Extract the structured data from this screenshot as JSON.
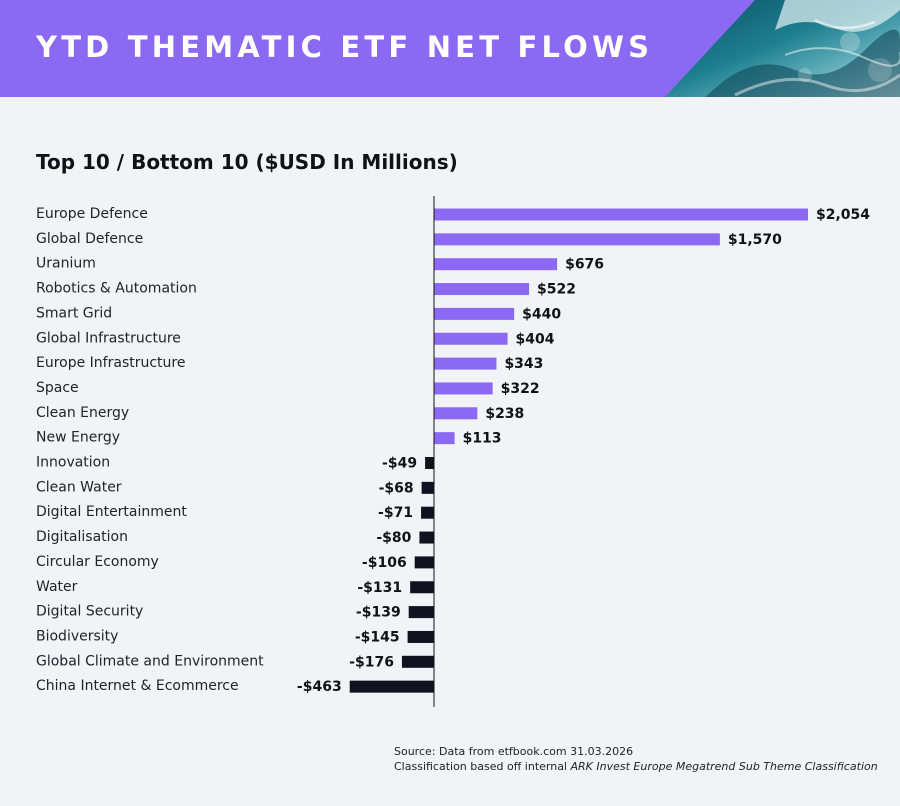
{
  "header": {
    "title": "YTD THEMATIC ETF NET FLOWS"
  },
  "colors": {
    "header_bg": "#8b69f2",
    "positive_bar": "#8b69f2",
    "negative_bar": "#12111f",
    "background": "#f2f3f6",
    "axis": "#111118"
  },
  "chart_data": {
    "type": "bar",
    "orientation": "horizontal",
    "title": "Top 10 / Bottom 10 ($USD In Millions)",
    "xlabel": "",
    "ylabel": "",
    "xlim": [
      -463,
      2054
    ],
    "grid": false,
    "categories": [
      "Europe Defence",
      "Global Defence",
      "Uranium",
      "Robotics & Automation",
      "Smart Grid",
      "Global Infrastructure",
      "Europe Infrastructure",
      "Space",
      "Clean Energy",
      "New Energy",
      "Innovation",
      "Clean Water",
      "Digital Entertainment",
      "Digitalisation",
      "Circular Economy",
      "Water",
      "Digital Security",
      "Biodiversity",
      "Global Climate and Environment",
      "China Internet & Ecommerce"
    ],
    "values": [
      2054,
      1570,
      676,
      522,
      440,
      404,
      343,
      322,
      238,
      113,
      -49,
      -68,
      -71,
      -80,
      -106,
      -131,
      -139,
      -145,
      -176,
      -463
    ],
    "labels": [
      "$2,054",
      "$1,570",
      "$676",
      "$522",
      "$440",
      "$404",
      "$343",
      "$322",
      "$238",
      "$113",
      "-$49",
      "-$68",
      "-$71",
      "-$80",
      "-$106",
      "-$131",
      "-$139",
      "-$145",
      "-$176",
      "-$463"
    ]
  },
  "footer": {
    "source": "Source: Data from etfbook.com 31.03.2026",
    "classification_prefix": "Classification based off internal ",
    "classification_name": "ARK Invest Europe Megatrend Sub Theme Classification"
  }
}
